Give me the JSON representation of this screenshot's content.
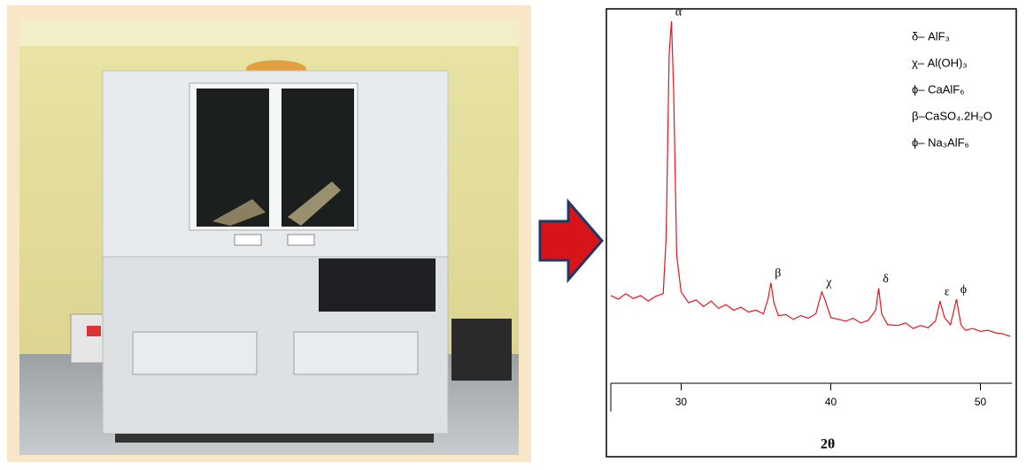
{
  "chart_data": {
    "type": "line",
    "xlabel": "2θ",
    "xlim": [
      25.3,
      52.1
    ],
    "xticks": [
      30,
      40,
      50
    ],
    "ylim": [
      0,
      100
    ],
    "series": [
      {
        "color": "#e8141c",
        "x": [
          25.3,
          25.8,
          26.3,
          26.8,
          27.3,
          27.8,
          28.3,
          28.8,
          29.0,
          29.2,
          29.35,
          29.5,
          29.7,
          30.0,
          30.5,
          31.0,
          31.5,
          32.0,
          32.5,
          33.0,
          33.5,
          34.0,
          34.5,
          35.0,
          35.5,
          35.8,
          36.0,
          36.2,
          36.5,
          37.0,
          37.5,
          38.0,
          38.5,
          39.0,
          39.4,
          39.6,
          40.0,
          40.5,
          41.0,
          41.5,
          42.0,
          42.5,
          43.0,
          43.2,
          43.4,
          43.8,
          44.5,
          45.0,
          45.5,
          46.0,
          46.5,
          47.0,
          47.3,
          47.6,
          48.0,
          48.4,
          48.7,
          49.0,
          49.5,
          50.0,
          50.5,
          51.0,
          51.5,
          52.0
        ],
        "values": [
          24,
          23,
          24.5,
          23.2,
          24,
          22.5,
          23.8,
          24.5,
          40,
          90,
          99,
          80,
          35,
          25,
          22,
          22.8,
          21,
          22.5,
          20.5,
          21.5,
          20,
          20.8,
          19.5,
          20,
          19,
          23,
          27.5,
          22,
          18.5,
          18.8,
          17.5,
          18.5,
          17.8,
          19,
          25,
          23,
          18,
          17.5,
          17,
          17.8,
          16.5,
          17.2,
          20,
          26,
          19,
          16,
          15.8,
          16.5,
          15,
          15.8,
          15.2,
          17,
          22.5,
          18,
          16,
          23,
          16,
          14.5,
          15,
          14.2,
          14.5,
          13.8,
          13.5,
          12.8
        ]
      }
    ],
    "annotations": [
      {
        "text": "α",
        "x": 29.35,
        "y": 99
      },
      {
        "text": "β",
        "x": 36.0,
        "y": 27.5
      },
      {
        "text": "χ",
        "x": 39.4,
        "y": 25
      },
      {
        "text": "δ",
        "x": 43.2,
        "y": 26
      },
      {
        "text": "ε",
        "x": 47.3,
        "y": 22.5
      },
      {
        "text": "ϕ",
        "x": 48.4,
        "y": 23
      }
    ],
    "legend_texts": [
      "δ– AlF₃",
      "χ– Al(OH)₃",
      "ϕ– CaAlF₆",
      "β–CaSO₄.2H₂O",
      "ϕ– Na₃AlF₆"
    ]
  }
}
